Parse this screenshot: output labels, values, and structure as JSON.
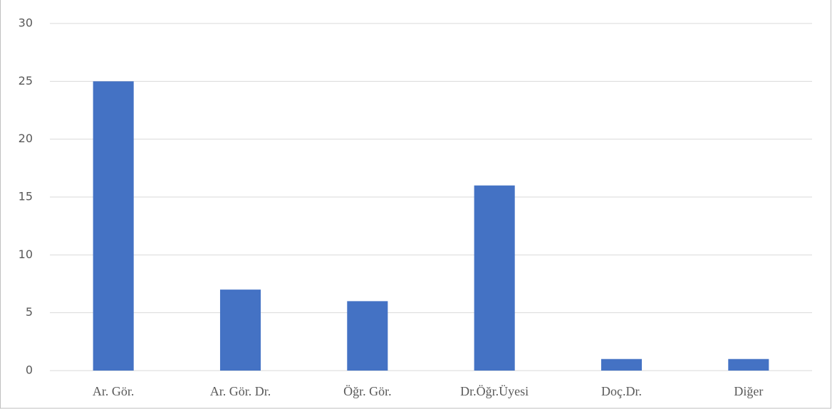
{
  "chart_data": {
    "type": "bar",
    "categories": [
      "Ar. Gör.",
      "Ar. Gör. Dr.",
      "Öğr. Gör.",
      "Dr.Öğr.Üyesi",
      "Doç.Dr.",
      "Diğer"
    ],
    "values": [
      25,
      7,
      6,
      16,
      1,
      1
    ],
    "color": "#4472c4",
    "ylim": [
      0,
      30
    ],
    "yticks": [
      0,
      5,
      10,
      15,
      20,
      25,
      30
    ],
    "grid": true
  }
}
